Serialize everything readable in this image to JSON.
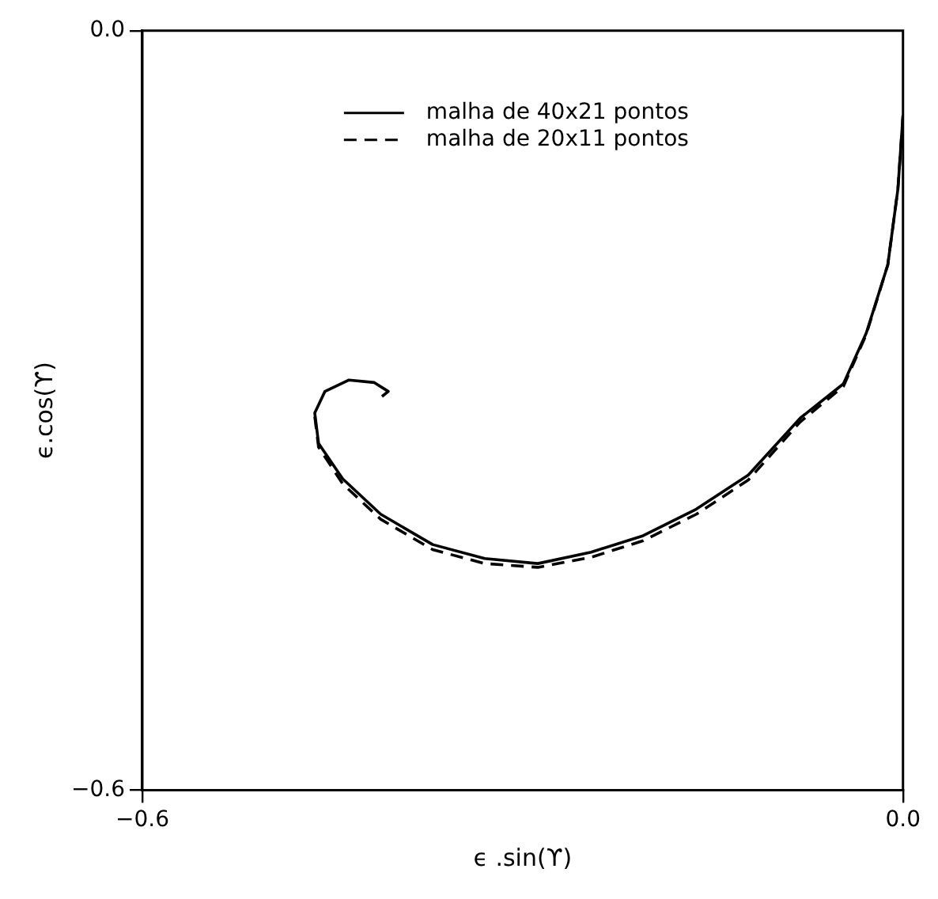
{
  "chart_data": {
    "type": "line",
    "xlabel": "ϵ .sin(ϒ)",
    "ylabel": "ϵ.cos(ϒ)",
    "xlim": [
      -0.6,
      0
    ],
    "ylim": [
      -0.6,
      0
    ],
    "xticks": [
      {
        "value": -0.6,
        "label": "−0.6"
      },
      {
        "value": 0,
        "label": "0.0"
      }
    ],
    "yticks": [
      {
        "value": -0.6,
        "label": "−0.6"
      },
      {
        "value": 0,
        "label": "0.0"
      }
    ],
    "grid": false,
    "legend": "top",
    "marker": "none",
    "series": [
      {
        "name": "malha de 40x21 pontos",
        "color": "#000000",
        "line_style": "solid",
        "x": [
          0,
          -0.004,
          -0.012,
          -0.029,
          -0.047,
          -0.081,
          -0.122,
          -0.163,
          -0.205,
          -0.246,
          -0.288,
          -0.33,
          -0.371,
          -0.412,
          -0.442,
          -0.461,
          -0.464,
          -0.456,
          -0.437,
          -0.417,
          -0.406,
          -0.411
        ],
        "values": [
          -0.067,
          -0.125,
          -0.185,
          -0.239,
          -0.279,
          -0.306,
          -0.351,
          -0.378,
          -0.399,
          -0.412,
          -0.421,
          -0.417,
          -0.406,
          -0.382,
          -0.354,
          -0.326,
          -0.302,
          -0.285,
          -0.276,
          -0.278,
          -0.285,
          -0.289
        ]
      },
      {
        "name": "malha de 20x11 pontos",
        "color": "#000000",
        "line_style": "dashed",
        "x": [
          0,
          -0.004,
          -0.012,
          -0.029,
          -0.047,
          -0.081,
          -0.122,
          -0.163,
          -0.205,
          -0.246,
          -0.288,
          -0.33,
          -0.371,
          -0.412,
          -0.442,
          -0.461,
          -0.464
        ],
        "values": [
          -0.067,
          -0.125,
          -0.185,
          -0.24,
          -0.281,
          -0.309,
          -0.355,
          -0.382,
          -0.403,
          -0.416,
          -0.424,
          -0.421,
          -0.41,
          -0.386,
          -0.358,
          -0.329,
          -0.305
        ]
      }
    ]
  }
}
